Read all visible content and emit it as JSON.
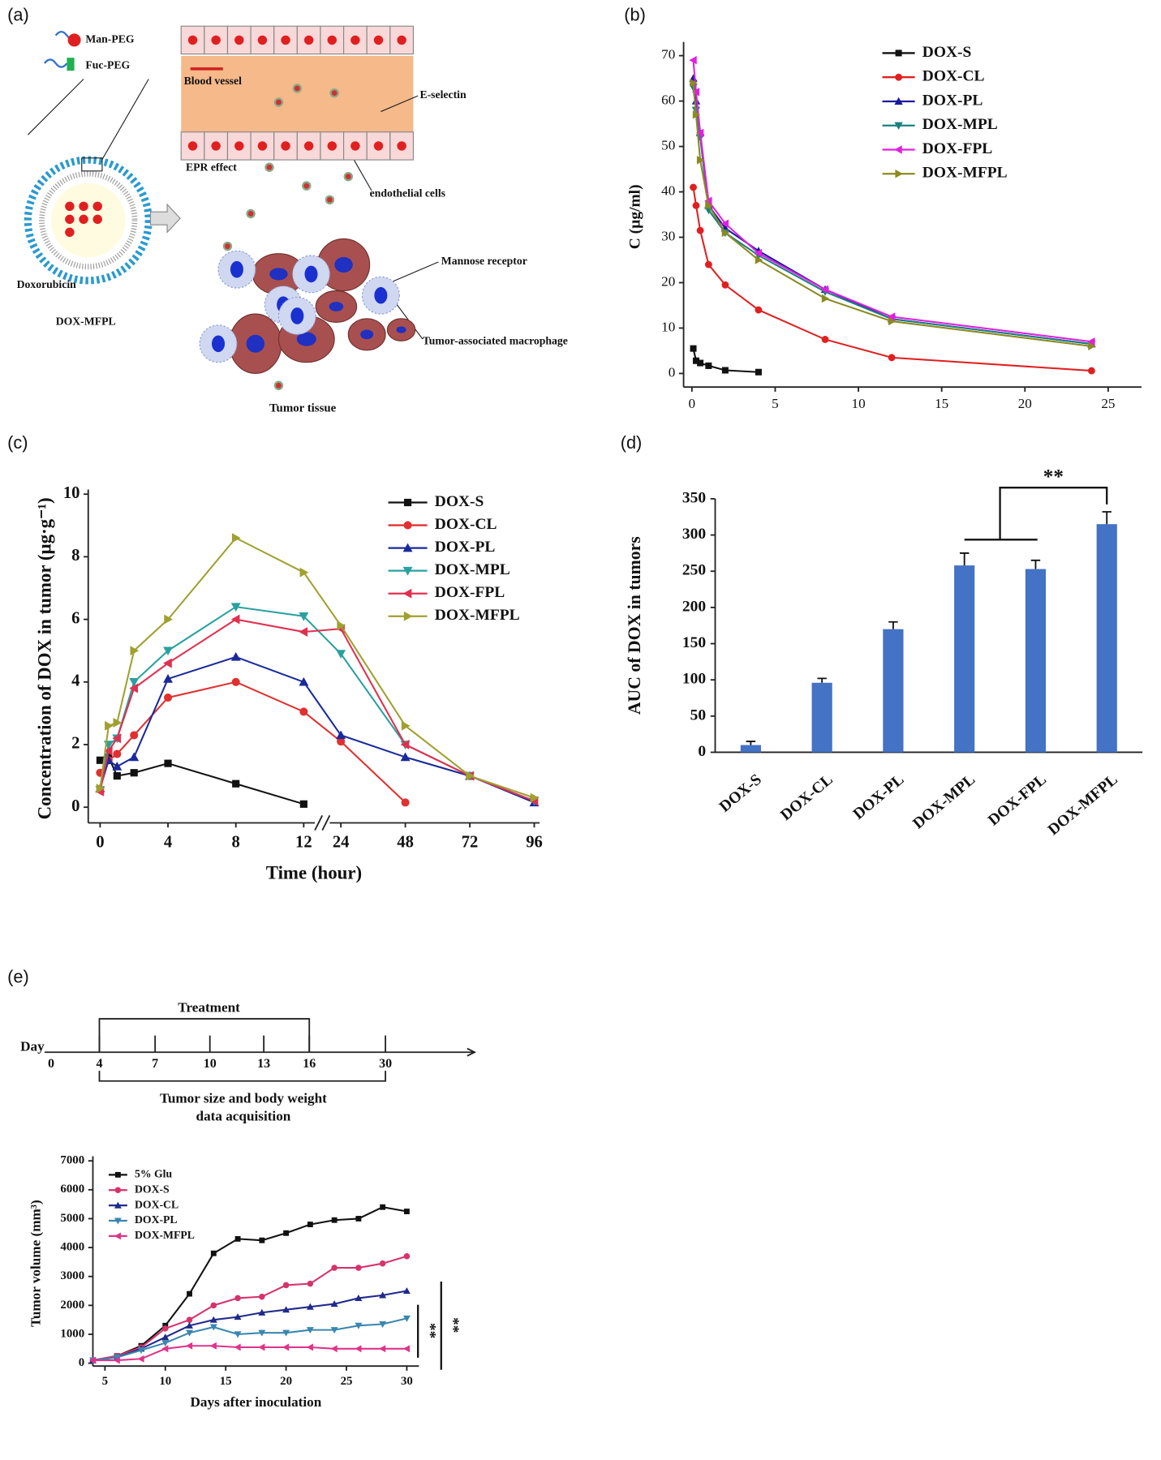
{
  "panel_labels": [
    "(a)",
    "(b)",
    "(c)",
    "(d)",
    "(e)"
  ],
  "diagram": {
    "man_peg": "Man-PEG",
    "fuc_peg": "Fuc-PEG",
    "doxorubicin": "Doxorubicin",
    "liposome": "DOX-MFPL",
    "blood_vessel": "Blood vessel",
    "e_selectin": "E-selectin",
    "epr": "EPR effect",
    "endothelial": "endothelial cells",
    "mannose": "Mannose receptor",
    "tam": "Tumor-associated macrophage",
    "tumor": "Tumor tissue"
  },
  "timeline": {
    "axis_label": "Day",
    "days": [
      0,
      4,
      7,
      10,
      13,
      16,
      30
    ],
    "treatment": "Treatment",
    "acquisition": [
      "Tumor size and body weight",
      "data acquisition"
    ]
  },
  "chart_data": [
    {
      "type": "line",
      "ylabel": "C (µg/ml)",
      "x": [
        0.083,
        0.25,
        0.5,
        1,
        2,
        4,
        8,
        12,
        24
      ],
      "xlim": [
        -0.5,
        27
      ],
      "xticks": [
        0,
        5,
        10,
        15,
        20,
        25
      ],
      "ylim": [
        -3,
        72
      ],
      "yticks": [
        0,
        10,
        20,
        30,
        40,
        50,
        60,
        70
      ],
      "series": [
        {
          "name": "DOX-S",
          "color": "#111111",
          "marker": "square",
          "values": [
            5.5,
            2.8,
            2.3,
            1.7,
            0.7,
            0.3,
            null,
            null,
            null
          ]
        },
        {
          "name": "DOX-CL",
          "color": "#e02020",
          "marker": "circle",
          "values": [
            41,
            37,
            31.5,
            24,
            19.5,
            14,
            7.5,
            3.5,
            0.6
          ]
        },
        {
          "name": "DOX-PL",
          "color": "#1a1aa0",
          "marker": "up",
          "values": [
            65,
            60,
            53,
            37,
            32,
            27,
            18.5,
            12,
            6.5
          ]
        },
        {
          "name": "DOX-MPL",
          "color": "#1a8080",
          "marker": "down",
          "values": [
            63,
            58,
            52,
            36,
            31,
            26,
            18,
            12,
            6.5
          ]
        },
        {
          "name": "DOX-FPL",
          "color": "#e020e0",
          "marker": "left",
          "values": [
            69,
            62,
            53,
            38,
            33,
            26.5,
            18.5,
            12.5,
            7
          ]
        },
        {
          "name": "DOX-MFPL",
          "color": "#8a8a20",
          "marker": "right",
          "values": [
            64,
            57,
            47,
            37,
            31,
            25,
            16.5,
            11.5,
            6
          ]
        }
      ]
    },
    {
      "type": "line",
      "xlabel": "Time (hour)",
      "ylabel": "Concentration of DOX in tumor (µg·g⁻¹)",
      "x": [
        0,
        0.5,
        1,
        2,
        4,
        8,
        12,
        24,
        48,
        72,
        96
      ],
      "axis_break": [
        12,
        24
      ],
      "xlim": [
        -0.7,
        98
      ],
      "xticks": [
        0,
        4,
        8,
        12,
        24,
        48,
        72,
        96
      ],
      "ylim": [
        -0.5,
        10
      ],
      "yticks": [
        0,
        2,
        4,
        6,
        8,
        10
      ],
      "series": [
        {
          "name": "DOX-S",
          "color": "#111111",
          "marker": "square",
          "values": [
            1.5,
            1.6,
            1.0,
            1.1,
            1.4,
            0.75,
            0.1,
            null,
            null,
            null,
            null
          ]
        },
        {
          "name": "DOX-CL",
          "color": "#e03030",
          "marker": "circle",
          "values": [
            1.1,
            1.5,
            1.7,
            2.3,
            3.5,
            4.0,
            3.05,
            2.1,
            0.15,
            null,
            null
          ]
        },
        {
          "name": "DOX-PL",
          "color": "#1a2a9a",
          "marker": "up",
          "values": [
            0.6,
            1.5,
            1.3,
            1.6,
            4.1,
            4.8,
            4.0,
            2.3,
            1.6,
            1.0,
            0.15
          ]
        },
        {
          "name": "DOX-MPL",
          "color": "#2aa0a0",
          "marker": "down",
          "values": [
            0.55,
            2.0,
            2.2,
            4.0,
            5.0,
            6.4,
            6.1,
            4.9,
            2.0,
            1.0,
            0.2
          ]
        },
        {
          "name": "DOX-FPL",
          "color": "#e03050",
          "marker": "left",
          "values": [
            0.5,
            1.8,
            2.2,
            3.8,
            4.6,
            6.0,
            5.6,
            5.7,
            2.0,
            1.0,
            0.2
          ]
        },
        {
          "name": "DOX-MFPL",
          "color": "#a0a030",
          "marker": "right",
          "values": [
            0.6,
            2.6,
            2.7,
            5.0,
            6.0,
            8.6,
            7.5,
            5.8,
            2.6,
            1.0,
            0.3
          ]
        }
      ]
    },
    {
      "type": "bar",
      "ylabel": "AUC of DOX in tumors",
      "categories": [
        "DOX-S",
        "DOX-CL",
        "DOX-PL",
        "DOX-MPL",
        "DOX-FPL",
        "DOX-MFPL"
      ],
      "values": [
        10,
        96,
        170,
        258,
        253,
        315
      ],
      "errors": [
        5,
        6,
        10,
        17,
        12,
        17
      ],
      "color": "#4472c4",
      "ylim": [
        0,
        350
      ],
      "yticks": [
        0,
        50,
        100,
        150,
        200,
        250,
        300,
        350
      ],
      "annotations": [
        "**"
      ]
    },
    {
      "type": "line",
      "xlabel": "Days after inoculation",
      "ylabel": "Tumor volume (mm³)",
      "x": [
        4,
        6,
        8,
        10,
        12,
        14,
        16,
        18,
        20,
        22,
        24,
        26,
        28,
        30
      ],
      "xlim": [
        4,
        31
      ],
      "xticks": [
        5,
        10,
        15,
        20,
        25,
        30
      ],
      "ylim": [
        -100,
        7000
      ],
      "yticks": [
        0,
        1000,
        2000,
        3000,
        4000,
        5000,
        6000,
        7000
      ],
      "series": [
        {
          "name": "5% Glu",
          "color": "#111111",
          "marker": "square",
          "values": [
            100,
            250,
            600,
            1300,
            2400,
            3800,
            4300,
            4250,
            4500,
            4800,
            4950,
            5000,
            5400,
            5250
          ]
        },
        {
          "name": "DOX-S",
          "color": "#d6336c",
          "marker": "circle",
          "values": [
            100,
            250,
            550,
            1200,
            1500,
            2000,
            2250,
            2300,
            2700,
            2750,
            3300,
            3300,
            3450,
            3700
          ]
        },
        {
          "name": "DOX-CL",
          "color": "#1f2a8a",
          "marker": "up",
          "values": [
            100,
            200,
            500,
            900,
            1300,
            1500,
            1600,
            1750,
            1850,
            1950,
            2050,
            2250,
            2350,
            2500
          ]
        },
        {
          "name": "DOX-PL",
          "color": "#3a86b0",
          "marker": "down",
          "values": [
            100,
            200,
            450,
            700,
            1050,
            1250,
            1000,
            1050,
            1050,
            1150,
            1150,
            1300,
            1350,
            1550
          ]
        },
        {
          "name": "DOX-MFPL",
          "color": "#e0338a",
          "marker": "left",
          "values": [
            100,
            100,
            150,
            500,
            600,
            600,
            550,
            550,
            550,
            550,
            500,
            500,
            500,
            500
          ]
        }
      ],
      "annotations": [
        "**",
        "**"
      ]
    }
  ]
}
